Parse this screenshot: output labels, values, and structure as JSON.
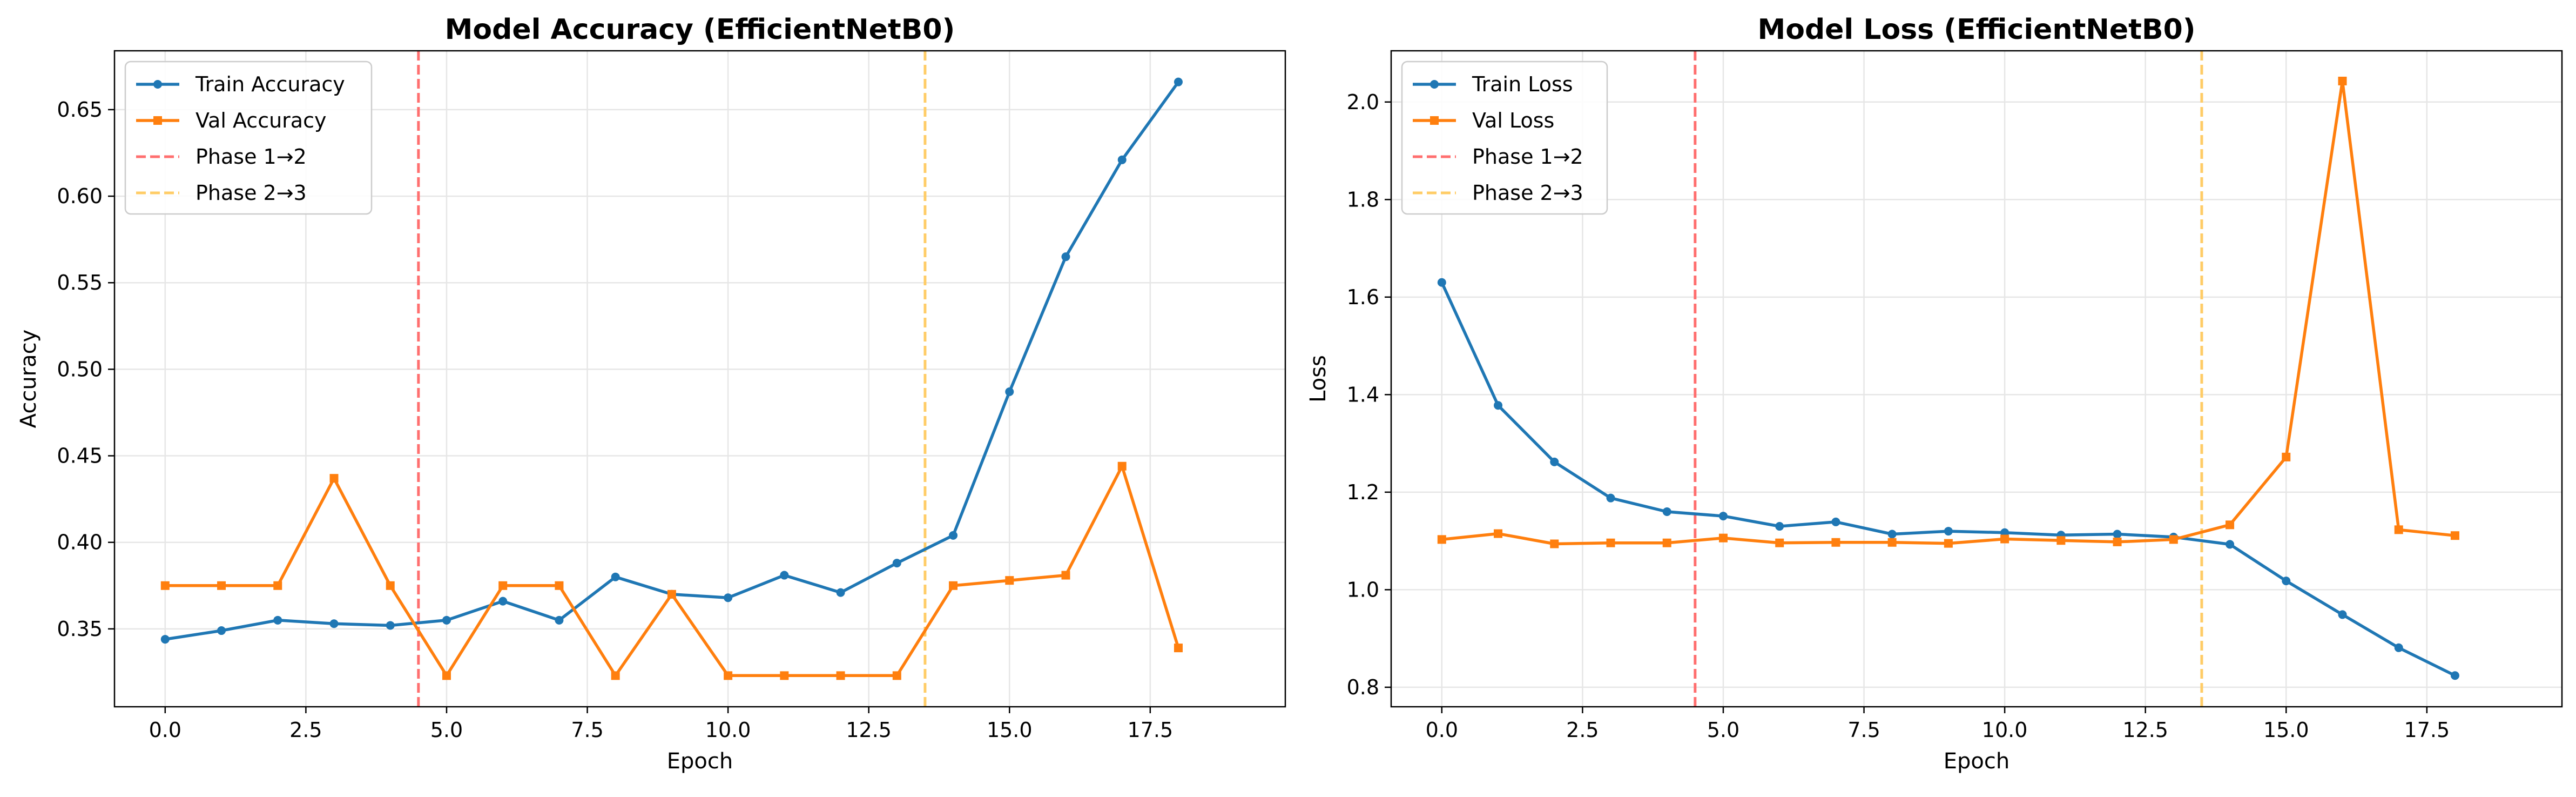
{
  "chart_data": [
    {
      "type": "line",
      "title": "Model Accuracy (EfficientNetB0)",
      "xlabel": "Epoch",
      "ylabel": "Accuracy",
      "xlim": [
        -0.9,
        19.9
      ],
      "ylim": [
        0.305,
        0.684
      ],
      "xticks": [
        0.0,
        2.5,
        5.0,
        7.5,
        10.0,
        12.5,
        15.0,
        17.5
      ],
      "xtick_labels": [
        "0.0",
        "2.5",
        "5.0",
        "7.5",
        "10.0",
        "12.5",
        "15.0",
        "17.5"
      ],
      "yticks": [
        0.35,
        0.4,
        0.45,
        0.5,
        0.55,
        0.6,
        0.65
      ],
      "ytick_labels": [
        "0.35",
        "0.40",
        "0.45",
        "0.50",
        "0.55",
        "0.60",
        "0.65"
      ],
      "grid": true,
      "legend_position": "upper-left",
      "x": [
        0,
        1,
        2,
        3,
        4,
        5,
        6,
        7,
        8,
        9,
        10,
        11,
        12,
        13,
        14,
        15,
        16,
        17,
        18
      ],
      "series": [
        {
          "name": "Train Accuracy",
          "color": "#1f77b4",
          "marker": "circle",
          "values": [
            0.344,
            0.349,
            0.355,
            0.353,
            0.352,
            0.355,
            0.366,
            0.355,
            0.38,
            0.37,
            0.368,
            0.381,
            0.371,
            0.388,
            0.404,
            0.487,
            0.565,
            0.621,
            0.666
          ]
        },
        {
          "name": "Val Accuracy",
          "color": "#ff7f0e",
          "marker": "square",
          "values": [
            0.375,
            0.375,
            0.375,
            0.437,
            0.375,
            0.323,
            0.375,
            0.375,
            0.323,
            0.37,
            0.323,
            0.323,
            0.323,
            0.323,
            0.375,
            0.378,
            0.381,
            0.444,
            0.339
          ]
        }
      ],
      "vlines": [
        {
          "name": "Phase 1→2",
          "x": 4.5,
          "color": "#ff6f6f"
        },
        {
          "name": "Phase 2→3",
          "x": 13.5,
          "color": "#ffcc66"
        }
      ]
    },
    {
      "type": "line",
      "title": "Model Loss (EfficientNetB0)",
      "xlabel": "Epoch",
      "ylabel": "Loss",
      "xlim": [
        -0.9,
        19.9
      ],
      "ylim": [
        0.76,
        2.105
      ],
      "xticks": [
        0.0,
        2.5,
        5.0,
        7.5,
        10.0,
        12.5,
        15.0,
        17.5
      ],
      "xtick_labels": [
        "0.0",
        "2.5",
        "5.0",
        "7.5",
        "10.0",
        "12.5",
        "15.0",
        "17.5"
      ],
      "yticks": [
        0.8,
        1.0,
        1.2,
        1.4,
        1.6,
        1.8,
        2.0
      ],
      "ytick_labels": [
        "0.8",
        "1.0",
        "1.2",
        "1.4",
        "1.6",
        "1.8",
        "2.0"
      ],
      "grid": true,
      "legend_position": "upper-left",
      "x": [
        0,
        1,
        2,
        3,
        4,
        5,
        6,
        7,
        8,
        9,
        10,
        11,
        12,
        13,
        14,
        15,
        16,
        17,
        18
      ],
      "series": [
        {
          "name": "Train Loss",
          "color": "#1f77b4",
          "marker": "circle",
          "values": [
            1.63,
            1.378,
            1.262,
            1.188,
            1.16,
            1.151,
            1.13,
            1.139,
            1.114,
            1.12,
            1.117,
            1.112,
            1.114,
            1.108,
            1.093,
            1.018,
            0.949,
            0.881,
            0.824
          ]
        },
        {
          "name": "Val Loss",
          "color": "#ff7f0e",
          "marker": "square",
          "values": [
            1.103,
            1.115,
            1.094,
            1.096,
            1.096,
            1.106,
            1.096,
            1.097,
            1.097,
            1.095,
            1.104,
            1.101,
            1.098,
            1.103,
            1.133,
            1.272,
            2.043,
            1.123,
            1.111
          ]
        }
      ],
      "vlines": [
        {
          "name": "Phase 1→2",
          "x": 4.5,
          "color": "#ff6f6f"
        },
        {
          "name": "Phase 2→3",
          "x": 13.5,
          "color": "#ffcc66"
        }
      ]
    }
  ]
}
